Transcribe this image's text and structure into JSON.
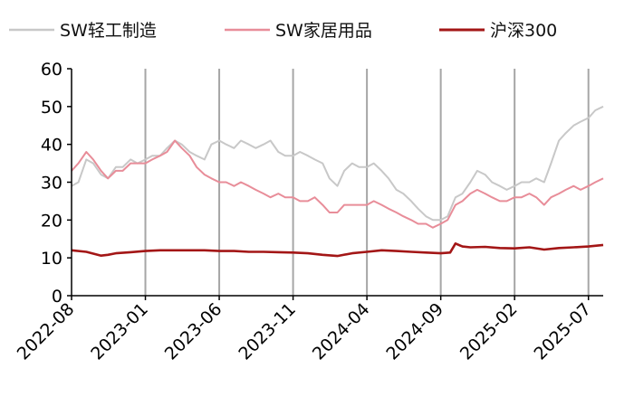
{
  "chart_data": {
    "type": "line",
    "title": "",
    "xlabel": "",
    "ylabel": "",
    "ylim": [
      0,
      60
    ],
    "yticks": [
      0,
      10,
      20,
      30,
      40,
      50,
      60
    ],
    "xlim": [
      "2022-08",
      "2025-08"
    ],
    "xticks": [
      "2022-08",
      "2023-01",
      "2023-06",
      "2023-11",
      "2024-04",
      "2024-09",
      "2025-02",
      "2025-07"
    ],
    "grid": "vertical lines at x ticks",
    "legend_position": "top",
    "series": [
      {
        "name": "SW轻工制造",
        "color": "#c8c8c8",
        "points": [
          [
            "2022-08",
            29
          ],
          [
            "2022-08-15",
            30
          ],
          [
            "2022-09",
            36
          ],
          [
            "2022-09-15",
            35
          ],
          [
            "2022-10",
            32
          ],
          [
            "2022-10-15",
            31
          ],
          [
            "2022-11",
            34
          ],
          [
            "2022-11-15",
            34
          ],
          [
            "2022-12",
            36
          ],
          [
            "2022-12-15",
            35
          ],
          [
            "2023-01",
            36
          ],
          [
            "2023-01-15",
            37
          ],
          [
            "2023-02",
            37
          ],
          [
            "2023-02-15",
            39
          ],
          [
            "2023-03",
            41
          ],
          [
            "2023-03-15",
            40
          ],
          [
            "2023-04",
            38
          ],
          [
            "2023-04-15",
            37
          ],
          [
            "2023-05",
            36
          ],
          [
            "2023-05-15",
            40
          ],
          [
            "2023-06",
            41
          ],
          [
            "2023-06-15",
            40
          ],
          [
            "2023-07",
            39
          ],
          [
            "2023-07-15",
            41
          ],
          [
            "2023-08",
            40
          ],
          [
            "2023-08-15",
            39
          ],
          [
            "2023-09",
            40
          ],
          [
            "2023-09-15",
            41
          ],
          [
            "2023-10",
            38
          ],
          [
            "2023-10-15",
            37
          ],
          [
            "2023-11",
            37
          ],
          [
            "2023-11-15",
            38
          ],
          [
            "2023-12",
            37
          ],
          [
            "2023-12-15",
            36
          ],
          [
            "2024-01",
            35
          ],
          [
            "2024-01-15",
            31
          ],
          [
            "2024-02",
            29
          ],
          [
            "2024-02-15",
            33
          ],
          [
            "2024-03",
            35
          ],
          [
            "2024-03-15",
            34
          ],
          [
            "2024-04",
            34
          ],
          [
            "2024-04-15",
            35
          ],
          [
            "2024-05",
            33
          ],
          [
            "2024-05-15",
            31
          ],
          [
            "2024-06",
            28
          ],
          [
            "2024-06-15",
            27
          ],
          [
            "2024-07",
            25
          ],
          [
            "2024-07-15",
            23
          ],
          [
            "2024-08",
            21
          ],
          [
            "2024-08-15",
            20
          ],
          [
            "2024-09",
            20
          ],
          [
            "2024-09-15",
            21
          ],
          [
            "2024-10",
            26
          ],
          [
            "2024-10-15",
            27
          ],
          [
            "2024-11",
            30
          ],
          [
            "2024-11-15",
            33
          ],
          [
            "2024-12",
            32
          ],
          [
            "2024-12-15",
            30
          ],
          [
            "2025-01",
            29
          ],
          [
            "2025-01-15",
            28
          ],
          [
            "2025-02",
            29
          ],
          [
            "2025-02-15",
            30
          ],
          [
            "2025-03",
            30
          ],
          [
            "2025-03-15",
            31
          ],
          [
            "2025-04",
            30
          ],
          [
            "2025-04-15",
            35
          ],
          [
            "2025-05",
            41
          ],
          [
            "2025-05-15",
            43
          ],
          [
            "2025-06",
            45
          ],
          [
            "2025-06-15",
            46
          ],
          [
            "2025-07",
            47
          ],
          [
            "2025-07-15",
            49
          ],
          [
            "2025-08",
            50
          ]
        ]
      },
      {
        "name": "SW家居用品",
        "color": "#e88d99",
        "points": [
          [
            "2022-08",
            33
          ],
          [
            "2022-08-15",
            35
          ],
          [
            "2022-09",
            38
          ],
          [
            "2022-09-15",
            36
          ],
          [
            "2022-10",
            33
          ],
          [
            "2022-10-15",
            31
          ],
          [
            "2022-11",
            33
          ],
          [
            "2022-11-15",
            33
          ],
          [
            "2022-12",
            35
          ],
          [
            "2022-12-15",
            35
          ],
          [
            "2023-01",
            35
          ],
          [
            "2023-01-15",
            36
          ],
          [
            "2023-02",
            37
          ],
          [
            "2023-02-15",
            38
          ],
          [
            "2023-03",
            41
          ],
          [
            "2023-03-15",
            39
          ],
          [
            "2023-04",
            37
          ],
          [
            "2023-04-15",
            34
          ],
          [
            "2023-05",
            32
          ],
          [
            "2023-05-15",
            31
          ],
          [
            "2023-06",
            30
          ],
          [
            "2023-06-15",
            30
          ],
          [
            "2023-07",
            29
          ],
          [
            "2023-07-15",
            30
          ],
          [
            "2023-08",
            29
          ],
          [
            "2023-08-15",
            28
          ],
          [
            "2023-09",
            27
          ],
          [
            "2023-09-15",
            26
          ],
          [
            "2023-10",
            27
          ],
          [
            "2023-10-15",
            26
          ],
          [
            "2023-11",
            26
          ],
          [
            "2023-11-15",
            25
          ],
          [
            "2023-12",
            25
          ],
          [
            "2023-12-15",
            26
          ],
          [
            "2024-01",
            24
          ],
          [
            "2024-01-15",
            22
          ],
          [
            "2024-02",
            22
          ],
          [
            "2024-02-15",
            24
          ],
          [
            "2024-03",
            24
          ],
          [
            "2024-03-15",
            24
          ],
          [
            "2024-04",
            24
          ],
          [
            "2024-04-15",
            25
          ],
          [
            "2024-05",
            24
          ],
          [
            "2024-05-15",
            23
          ],
          [
            "2024-06",
            22
          ],
          [
            "2024-06-15",
            21
          ],
          [
            "2024-07",
            20
          ],
          [
            "2024-07-15",
            19
          ],
          [
            "2024-08",
            19
          ],
          [
            "2024-08-15",
            18
          ],
          [
            "2024-09",
            19
          ],
          [
            "2024-09-15",
            20
          ],
          [
            "2024-10",
            24
          ],
          [
            "2024-10-15",
            25
          ],
          [
            "2024-11",
            27
          ],
          [
            "2024-11-15",
            28
          ],
          [
            "2024-12",
            27
          ],
          [
            "2024-12-15",
            26
          ],
          [
            "2025-01",
            25
          ],
          [
            "2025-01-15",
            25
          ],
          [
            "2025-02",
            26
          ],
          [
            "2025-02-15",
            26
          ],
          [
            "2025-03",
            27
          ],
          [
            "2025-03-15",
            26
          ],
          [
            "2025-04",
            24
          ],
          [
            "2025-04-15",
            26
          ],
          [
            "2025-05",
            27
          ],
          [
            "2025-05-15",
            28
          ],
          [
            "2025-06",
            29
          ],
          [
            "2025-06-15",
            28
          ],
          [
            "2025-07",
            29
          ],
          [
            "2025-07-15",
            30
          ],
          [
            "2025-08",
            31
          ]
        ]
      },
      {
        "name": "沪深300",
        "color": "#a31616",
        "points": [
          [
            "2022-08",
            12
          ],
          [
            "2022-09",
            11.6
          ],
          [
            "2022-10",
            10.6
          ],
          [
            "2022-10-15",
            10.8
          ],
          [
            "2022-11",
            11.2
          ],
          [
            "2022-12",
            11.5
          ],
          [
            "2023-01",
            11.8
          ],
          [
            "2023-02",
            12
          ],
          [
            "2023-03",
            12
          ],
          [
            "2023-04",
            12
          ],
          [
            "2023-05",
            12
          ],
          [
            "2023-06",
            11.8
          ],
          [
            "2023-07",
            11.8
          ],
          [
            "2023-08",
            11.6
          ],
          [
            "2023-09",
            11.6
          ],
          [
            "2023-10",
            11.5
          ],
          [
            "2023-11",
            11.4
          ],
          [
            "2023-12",
            11.2
          ],
          [
            "2024-01",
            10.8
          ],
          [
            "2024-02",
            10.5
          ],
          [
            "2024-03",
            11.2
          ],
          [
            "2024-04",
            11.6
          ],
          [
            "2024-05",
            12
          ],
          [
            "2024-06",
            11.8
          ],
          [
            "2024-07",
            11.6
          ],
          [
            "2024-08",
            11.4
          ],
          [
            "2024-09",
            11.2
          ],
          [
            "2024-09-20",
            11.4
          ],
          [
            "2024-10",
            13.8
          ],
          [
            "2024-10-15",
            13
          ],
          [
            "2024-11",
            12.8
          ],
          [
            "2024-12",
            12.9
          ],
          [
            "2025-01",
            12.6
          ],
          [
            "2025-02",
            12.5
          ],
          [
            "2025-03",
            12.8
          ],
          [
            "2025-04",
            12.2
          ],
          [
            "2025-05",
            12.6
          ],
          [
            "2025-06",
            12.8
          ],
          [
            "2025-07",
            13
          ],
          [
            "2025-08",
            13.4
          ]
        ]
      }
    ]
  }
}
